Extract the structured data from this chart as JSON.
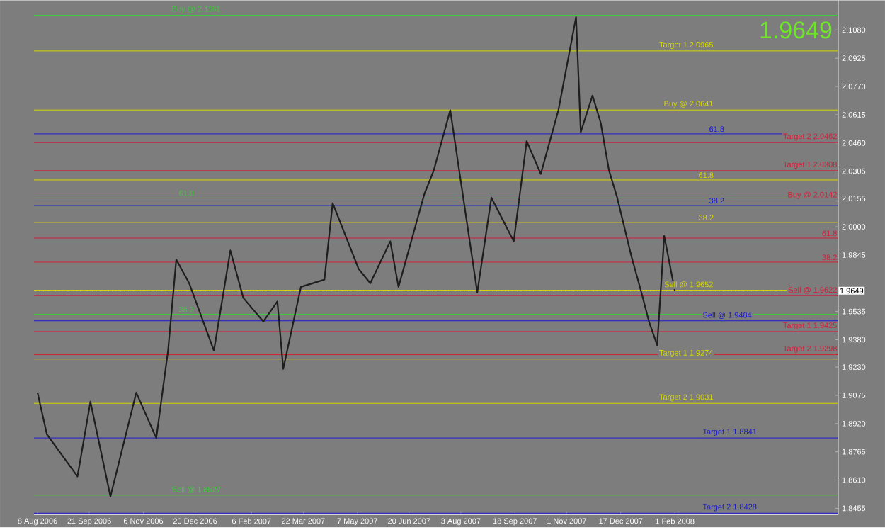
{
  "chart_data": {
    "type": "line",
    "annotations": [
      "1.9649",
      "1.9649",
      {
        "text": "61.8",
        "x": "2008-03-06",
        "y": 2.0257
      },
      {
        "text": "38.2",
        "x": "2008-03-06",
        "y": 2.0024
      },
      {
        "text": "61.8",
        "x": "2008-06-19",
        "y": 1.9938
      },
      {
        "text": "38.2",
        "x": "2008-06-19",
        "y": 1.9806
      },
      {
        "text": "61.8",
        "x": "2008-03-15",
        "y": 2.051
      },
      {
        "text": "38.2",
        "x": "2008-03-15",
        "y": 2.0117
      },
      {
        "text": "61.8",
        "x": "2006-12-20",
        "y": 2.0158
      },
      {
        "text": "38.2",
        "x": "2006-12-20",
        "y": 1.952
      }
    ],
    "xlim": [
      "2006-08-05",
      "2008-06-19"
    ],
    "xticks": [
      {
        "value": "2006-08-08",
        "label": "8 Aug 2006"
      },
      {
        "value": "2006-09-21",
        "label": "21 Sep 2006"
      },
      {
        "value": "2006-11-06",
        "label": "6 Nov 2006"
      },
      {
        "value": "2006-12-20",
        "label": "20 Dec 2006"
      },
      {
        "value": "2007-02-06",
        "label": "6 Feb 2007"
      },
      {
        "value": "2007-03-22",
        "label": "22 Mar 2007"
      },
      {
        "value": "2007-05-07",
        "label": "7 May 2007"
      },
      {
        "value": "2007-06-20",
        "label": "20 Jun 2007"
      },
      {
        "value": "2007-08-03",
        "label": "3 Aug 2007"
      },
      {
        "value": "2007-09-18",
        "label": "18 Sep 2007"
      },
      {
        "value": "2007-11-01",
        "label": "1 Nov 2007"
      },
      {
        "value": "2007-12-17",
        "label": "17 Dec 2007"
      },
      {
        "value": "2008-02-01",
        "label": "1 Feb 2008"
      }
    ],
    "ylim": [
      1.842,
      2.1243
    ],
    "yticks": [
      {
        "value": 2.108,
        "label": "2.1080"
      },
      {
        "value": 2.0925,
        "label": "2.0925"
      },
      {
        "value": 2.077,
        "label": "2.0770"
      },
      {
        "value": 2.0615,
        "label": "2.0615"
      },
      {
        "value": 2.046,
        "label": "2.0460"
      },
      {
        "value": 2.0305,
        "label": "2.0305"
      },
      {
        "value": 2.0155,
        "label": "2.0155"
      },
      {
        "value": 2.0,
        "label": "2.0000"
      },
      {
        "value": 1.9845,
        "label": "1.9845"
      },
      {
        "value": 1.9535,
        "label": "1.9535"
      },
      {
        "value": 1.938,
        "label": "1.9380"
      },
      {
        "value": 1.923,
        "label": "1.9230"
      },
      {
        "value": 1.9075,
        "label": "1.9075"
      },
      {
        "value": 1.892,
        "label": "1.8920"
      },
      {
        "value": 1.8765,
        "label": "1.8765"
      },
      {
        "value": 1.861,
        "label": "1.8610"
      },
      {
        "value": 1.8455,
        "label": "1.8455"
      }
    ],
    "series": [
      {
        "color": "#1e1e1e",
        "x": [
          "2006-08-08",
          "2006-08-16",
          "2006-09-11",
          "2006-09-22",
          "2006-10-09",
          "2006-10-31",
          "2006-11-17",
          "2006-11-27",
          "2006-12-04",
          "2006-12-15",
          "2007-01-05",
          "2007-01-19",
          "2007-01-30",
          "2007-02-16",
          "2007-02-28",
          "2007-03-05",
          "2007-03-20",
          "2007-04-09",
          "2007-04-16",
          "2007-05-08",
          "2007-05-18",
          "2007-06-04",
          "2007-06-11",
          "2007-07-03",
          "2007-07-11",
          "2007-07-25",
          "2007-08-17",
          "2007-08-29",
          "2007-09-17",
          "2007-09-28",
          "2007-10-10",
          "2007-10-25",
          "2007-11-09",
          "2007-11-13",
          "2007-11-23",
          "2007-11-30",
          "2007-12-07",
          "2007-12-14",
          "2007-12-26",
          "2008-01-04",
          "2008-01-10",
          "2008-01-17",
          "2008-01-23",
          "2008-02-01"
        ],
        "values": [
          1.909,
          1.886,
          1.863,
          1.904,
          1.852,
          1.909,
          1.884,
          1.932,
          1.982,
          1.969,
          1.932,
          1.987,
          1.961,
          1.948,
          1.959,
          1.922,
          1.967,
          1.971,
          2.013,
          1.977,
          1.969,
          1.992,
          1.967,
          2.018,
          2.031,
          2.064,
          1.964,
          2.016,
          1.992,
          2.047,
          2.029,
          2.064,
          2.115,
          2.052,
          2.072,
          2.057,
          2.031,
          2.016,
          1.984,
          1.963,
          1.948,
          1.935,
          1.995,
          1.9649
        ]
      }
    ],
    "ref_lines": [
      {
        "axis": "y",
        "value": 2.0965,
        "label": "Target 1   2.0965",
        "color": "#d8d800"
      },
      {
        "axis": "y",
        "value": 2.0641,
        "label": "Buy  @  2.0641",
        "color": "#d8d800"
      },
      {
        "axis": "y",
        "value": 2.0257,
        "color": "#d8d800"
      },
      {
        "axis": "y",
        "value": 2.0024,
        "color": "#d8d800"
      },
      {
        "axis": "y",
        "value": 1.9652,
        "label": "Sell  @  1.9652",
        "color": "#d8d800"
      },
      {
        "axis": "y",
        "value": 1.9274,
        "label": "Target 1   1.9274",
        "color": "#d8d800"
      },
      {
        "axis": "y",
        "value": 1.9031,
        "label": "Target 2   1.9031",
        "color": "#d8d800"
      },
      {
        "axis": "y",
        "value": 2.0462,
        "label": "Target 2   2.0462",
        "color": "#d0203a"
      },
      {
        "axis": "y",
        "value": 2.0308,
        "label": "Target 1   2.0308",
        "color": "#d0203a"
      },
      {
        "axis": "y",
        "value": 2.0142,
        "label": "Buy  @  2.0142",
        "color": "#d0203a"
      },
      {
        "axis": "y",
        "value": 1.9938,
        "color": "#d0203a"
      },
      {
        "axis": "y",
        "value": 1.9806,
        "color": "#d0203a"
      },
      {
        "axis": "y",
        "value": 1.9622,
        "label": "Sell  @  1.9622",
        "color": "#d0203a"
      },
      {
        "axis": "y",
        "value": 1.9425,
        "label": "Target 1   1.9425",
        "color": "#d0203a"
      },
      {
        "axis": "y",
        "value": 1.9298,
        "label": "Target 2   1.9298",
        "color": "#d0203a"
      },
      {
        "axis": "y",
        "value": 2.051,
        "color": "#1c1cd0"
      },
      {
        "axis": "y",
        "value": 2.0117,
        "color": "#1c1cd0"
      },
      {
        "axis": "y",
        "value": 1.9484,
        "label": "Sell  @  1.9484",
        "color": "#1c1cd0"
      },
      {
        "axis": "y",
        "value": 1.8841,
        "label": "Target 1   1.8841",
        "color": "#1c1cd0"
      },
      {
        "axis": "y",
        "value": 1.8428,
        "label": "Target 2   1.8428",
        "color": "#1c1cd0"
      },
      {
        "axis": "y",
        "value": 2.1161,
        "label": "Buy  @  2.1161",
        "color": "#3ccc3c"
      },
      {
        "axis": "y",
        "value": 2.0158,
        "color": "#3ccc3c"
      },
      {
        "axis": "y",
        "value": 1.952,
        "color": "#3ccc3c"
      },
      {
        "axis": "y",
        "value": 1.8527,
        "label": "Sell  @  1.8527",
        "color": "#3ccc3c"
      },
      {
        "axis": "y",
        "value": 1.9649,
        "color": "#b4b4b4",
        "line_style": "dotted"
      }
    ]
  }
}
